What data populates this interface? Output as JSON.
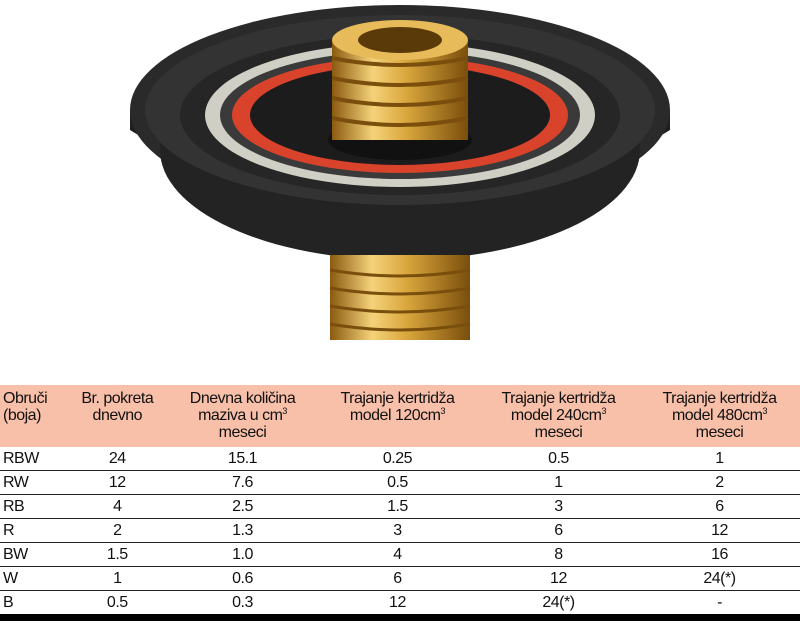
{
  "colors": {
    "header_bg": "#f8bfa9",
    "brass": "#d9a63c",
    "body": "#2a2a2a",
    "red_ring": "#d9432c",
    "white_ring": "#d8d8d0"
  },
  "table": {
    "headers": [
      {
        "l1": "Obruči",
        "l2": "(boja)",
        "l3": ""
      },
      {
        "l1": "Br. pokreta",
        "l2": "dnevno",
        "l3": ""
      },
      {
        "l1": "Dnevna količina",
        "l2": "maziva u cm",
        "sup": "3",
        "l3": "meseci"
      },
      {
        "l1": "Trajanje kertridža",
        "l2": "model 120cm",
        "sup": "3",
        "l3": ""
      },
      {
        "l1": "Trajanje kertridža",
        "l2": "model 240cm",
        "sup": "3",
        "l3": "meseci"
      },
      {
        "l1": "Trajanje kertridža",
        "l2": "model 480cm",
        "sup": "3",
        "l3": "meseci"
      }
    ],
    "rows": [
      [
        "RBW",
        "24",
        "15.1",
        "0.25",
        "0.5",
        "1"
      ],
      [
        "RW",
        "12",
        "7.6",
        "0.5",
        "1",
        "2"
      ],
      [
        "RB",
        "4",
        "2.5",
        "1.5",
        "3",
        "6"
      ],
      [
        "R",
        "2",
        "1.3",
        "3",
        "6",
        "12"
      ],
      [
        "BW",
        "1.5",
        "1.0",
        "4",
        "8",
        "16"
      ],
      [
        "W",
        "1",
        "0.6",
        "6",
        "12",
        "24(*)"
      ],
      [
        "B",
        "0.5",
        "0.3",
        "12",
        "24(*)",
        "-"
      ]
    ]
  }
}
